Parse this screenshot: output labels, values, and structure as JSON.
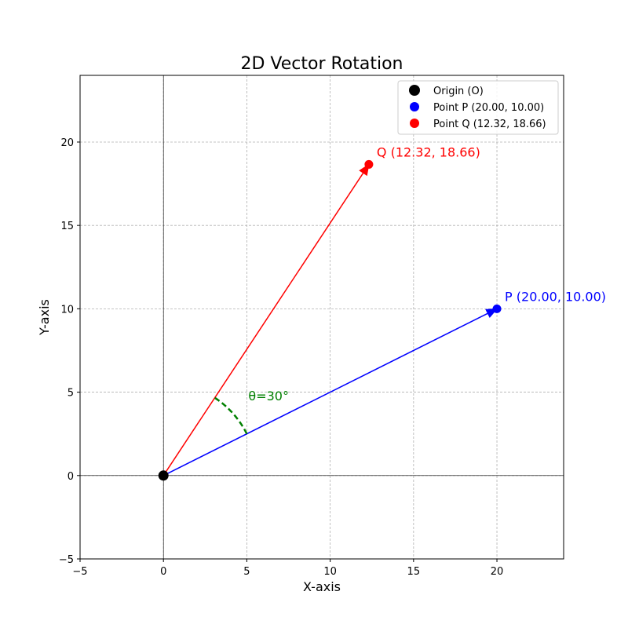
{
  "chart_data": {
    "type": "scatter",
    "title": "2D Vector Rotation",
    "xlabel": "X-axis",
    "ylabel": "Y-axis",
    "xlim": [
      -5,
      24
    ],
    "ylim": [
      -5,
      24
    ],
    "xticks": [
      -5,
      0,
      5,
      10,
      15,
      20
    ],
    "yticks": [
      -5,
      0,
      5,
      10,
      15,
      20
    ],
    "grid": true,
    "legend_position": "top-right",
    "points": [
      {
        "key": "origin",
        "x": 0,
        "y": 0,
        "color": "#000000",
        "legend": "Origin (O)",
        "label": ""
      },
      {
        "key": "p",
        "x": 20.0,
        "y": 10.0,
        "color": "#0000ff",
        "legend": "Point P (20.00, 10.00)",
        "label": "P (20.00, 10.00)"
      },
      {
        "key": "q",
        "x": 12.32,
        "y": 18.66,
        "color": "#ff0000",
        "legend": "Point Q (12.32, 18.66)",
        "label": "Q (12.32, 18.66)"
      }
    ],
    "vectors": [
      {
        "key": "op",
        "from": [
          0,
          0
        ],
        "to": [
          20.0,
          10.0
        ],
        "color": "#0000ff"
      },
      {
        "key": "oq",
        "from": [
          0,
          0
        ],
        "to": [
          12.32,
          18.66
        ],
        "color": "#ff0000"
      }
    ],
    "angle_arc": {
      "radius": 5.59,
      "start_deg": 26.57,
      "end_deg": 56.57,
      "color": "#008000",
      "label": "θ=30°",
      "label_x": 5.0,
      "label_y": 4.5
    }
  }
}
